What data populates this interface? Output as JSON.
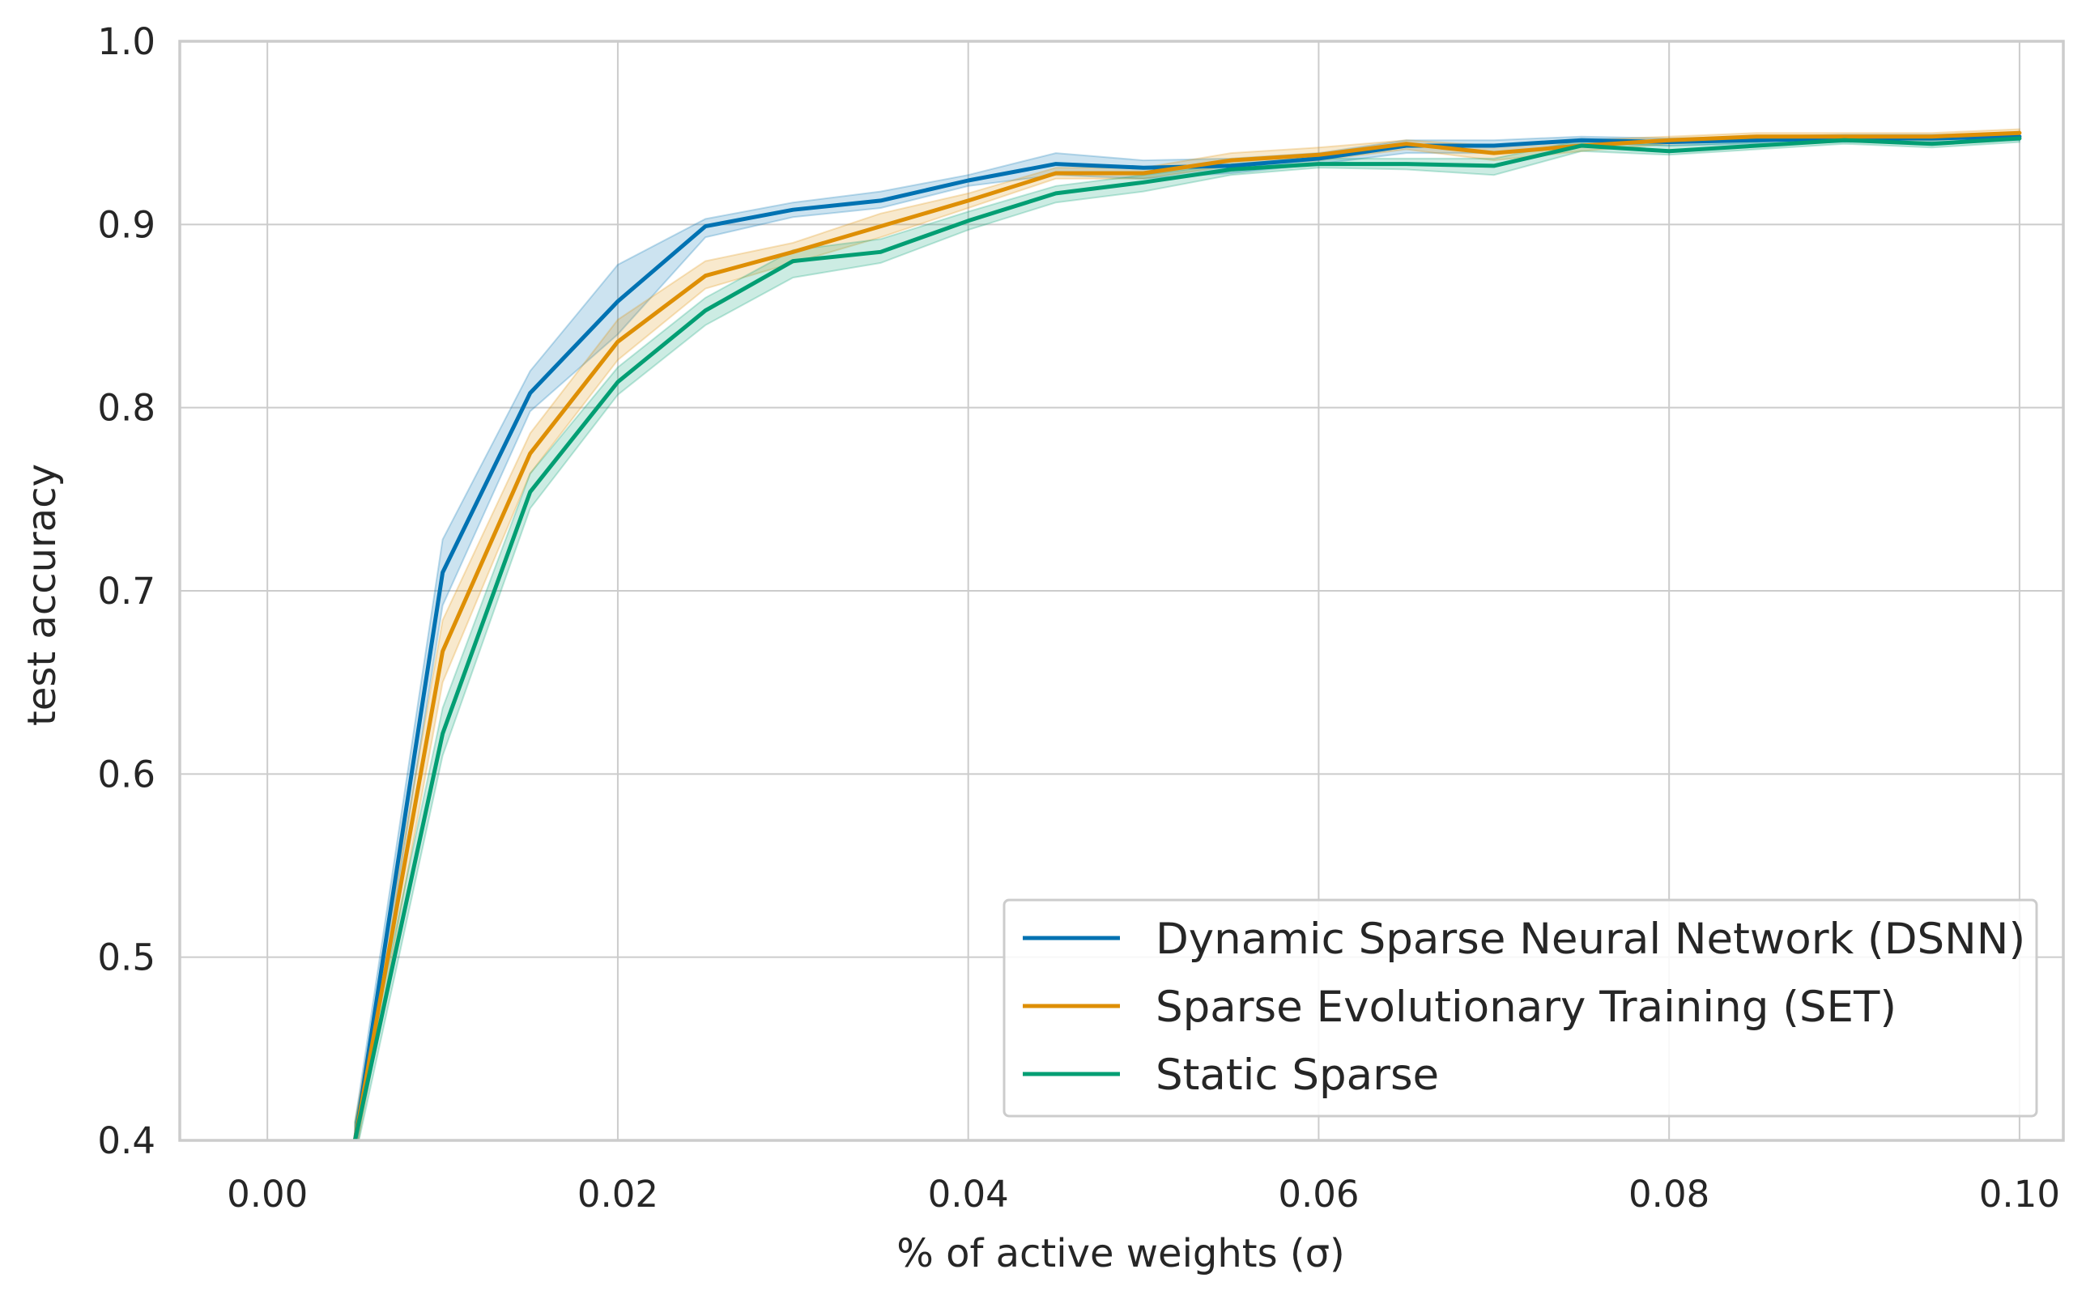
{
  "chart_data": {
    "type": "line",
    "xlabel": "% of active weights (σ)",
    "ylabel": "test accuracy",
    "xlim": [
      -0.005,
      0.1025
    ],
    "ylim": [
      0.4,
      1.0
    ],
    "xticks": [
      0.0,
      0.02,
      0.04,
      0.06,
      0.08,
      0.1
    ],
    "xtick_labels": [
      "0.00",
      "0.02",
      "0.04",
      "0.06",
      "0.08",
      "0.10"
    ],
    "yticks": [
      0.4,
      0.5,
      0.6,
      0.7,
      0.8,
      0.9,
      1.0
    ],
    "ytick_labels": [
      "0.4",
      "0.5",
      "0.6",
      "0.7",
      "0.8",
      "0.9",
      "1.0"
    ],
    "grid": true,
    "legend_position": "lower-right",
    "x": [
      0.005,
      0.01,
      0.015,
      0.02,
      0.025,
      0.03,
      0.035,
      0.04,
      0.045,
      0.05,
      0.055,
      0.06,
      0.065,
      0.07,
      0.075,
      0.08,
      0.085,
      0.09,
      0.095,
      0.1
    ],
    "series": [
      {
        "name": "Dynamic Sparse Neural Network (DSNN)",
        "color": "#0072b2",
        "values": [
          0.4,
          0.71,
          0.808,
          0.858,
          0.899,
          0.908,
          0.913,
          0.924,
          0.933,
          0.931,
          0.932,
          0.936,
          0.943,
          0.943,
          0.946,
          0.945,
          0.946,
          0.947,
          0.947,
          0.948
        ],
        "lower": [
          0.39,
          0.692,
          0.798,
          0.84,
          0.893,
          0.904,
          0.909,
          0.921,
          0.927,
          0.925,
          0.928,
          0.933,
          0.939,
          0.939,
          0.944,
          0.943,
          0.944,
          0.945,
          0.945,
          0.946
        ],
        "upper": [
          0.41,
          0.728,
          0.82,
          0.878,
          0.903,
          0.912,
          0.918,
          0.927,
          0.939,
          0.935,
          0.936,
          0.939,
          0.946,
          0.946,
          0.948,
          0.947,
          0.948,
          0.949,
          0.949,
          0.95
        ]
      },
      {
        "name": "Sparse Evolutionary Training (SET)",
        "color": "#de8f05",
        "values": [
          0.4,
          0.667,
          0.775,
          0.836,
          0.872,
          0.885,
          0.899,
          0.913,
          0.928,
          0.928,
          0.935,
          0.938,
          0.944,
          0.939,
          0.943,
          0.946,
          0.948,
          0.948,
          0.948,
          0.95
        ],
        "lower": [
          0.39,
          0.65,
          0.764,
          0.826,
          0.865,
          0.879,
          0.893,
          0.909,
          0.925,
          0.925,
          0.932,
          0.935,
          0.941,
          0.935,
          0.94,
          0.944,
          0.946,
          0.946,
          0.946,
          0.948
        ],
        "upper": [
          0.41,
          0.684,
          0.786,
          0.848,
          0.88,
          0.89,
          0.906,
          0.917,
          0.931,
          0.931,
          0.939,
          0.942,
          0.946,
          0.943,
          0.946,
          0.948,
          0.95,
          0.95,
          0.95,
          0.952
        ]
      },
      {
        "name": "Static Sparse",
        "color": "#029e73",
        "values": [
          0.4,
          0.622,
          0.754,
          0.814,
          0.853,
          0.88,
          0.885,
          0.902,
          0.917,
          0.923,
          0.93,
          0.933,
          0.933,
          0.932,
          0.943,
          0.94,
          0.943,
          0.946,
          0.944,
          0.947
        ],
        "lower": [
          0.39,
          0.61,
          0.745,
          0.807,
          0.845,
          0.871,
          0.879,
          0.897,
          0.912,
          0.918,
          0.927,
          0.931,
          0.93,
          0.927,
          0.94,
          0.938,
          0.941,
          0.944,
          0.942,
          0.945
        ],
        "upper": [
          0.41,
          0.636,
          0.764,
          0.822,
          0.86,
          0.886,
          0.892,
          0.907,
          0.921,
          0.927,
          0.933,
          0.936,
          0.936,
          0.936,
          0.946,
          0.943,
          0.945,
          0.948,
          0.946,
          0.949
        ]
      }
    ]
  }
}
